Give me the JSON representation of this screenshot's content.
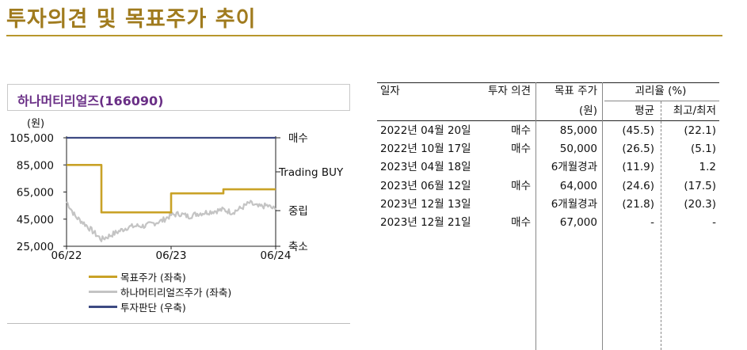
{
  "page_title": "투자의견 및 목표주가 추이",
  "chart_title": "하나머티리얼즈(166090)",
  "colors": {
    "title": "#a07b1e",
    "target": "#c9a227",
    "stock": "#c4c4c4",
    "opinion": "#3d4a82",
    "chart_title": "#6a2f86"
  },
  "chart_data": {
    "type": "line",
    "y_unit": "(원)",
    "ylim": [
      25000,
      105000
    ],
    "y_ticks": [
      "25,000",
      "45,000",
      "65,000",
      "85,000",
      "105,000"
    ],
    "y_tick_values": [
      25000,
      45000,
      65000,
      85000,
      105000
    ],
    "x_ticks": [
      "06/22",
      "06/23",
      "06/24"
    ],
    "x_tick_values": [
      "2022-06",
      "2023-06",
      "2024-06"
    ],
    "xlim": [
      "2022-06",
      "2024-06"
    ],
    "right_axis_labels": [
      "매수",
      "Trading BUY",
      "중립",
      "축소"
    ],
    "series": [
      {
        "name": "목표주가 (좌축)",
        "kind": "step",
        "points": [
          [
            "2022-06",
            85000
          ],
          [
            "2022-10",
            85000
          ],
          [
            "2022-10",
            50000
          ],
          [
            "2023-06",
            50000
          ],
          [
            "2023-06",
            64000
          ],
          [
            "2023-12",
            64000
          ],
          [
            "2023-12",
            67000
          ],
          [
            "2024-06",
            67000
          ]
        ]
      },
      {
        "name": "하나머티리얼즈주가 (좌축)",
        "kind": "line",
        "points": [
          [
            "2022-06",
            58000
          ],
          [
            "2022-07",
            47000
          ],
          [
            "2022-08",
            42000
          ],
          [
            "2022-09",
            36000
          ],
          [
            "2022-10",
            30000
          ],
          [
            "2022-11",
            33000
          ],
          [
            "2022-12",
            36000
          ],
          [
            "2023-01",
            39000
          ],
          [
            "2023-02",
            40000
          ],
          [
            "2023-03",
            40000
          ],
          [
            "2023-04",
            42000
          ],
          [
            "2023-05",
            44000
          ],
          [
            "2023-06",
            48000
          ],
          [
            "2023-07",
            49000
          ],
          [
            "2023-08",
            47000
          ],
          [
            "2023-09",
            49000
          ],
          [
            "2023-10",
            50000
          ],
          [
            "2023-11",
            51000
          ],
          [
            "2023-12",
            52000
          ],
          [
            "2024-01",
            50000
          ],
          [
            "2024-02",
            53000
          ],
          [
            "2024-03",
            57000
          ],
          [
            "2024-04",
            54000
          ],
          [
            "2024-05",
            55000
          ],
          [
            "2024-06",
            52000
          ]
        ]
      },
      {
        "name": "투자판단 (우축)",
        "kind": "line",
        "points": [
          [
            "2022-06",
            105000
          ],
          [
            "2024-06",
            105000
          ]
        ]
      }
    ]
  },
  "legend": [
    "목표주가 (좌축)",
    "하나머티리얼즈주가 (좌축)",
    "투자판단 (우축)"
  ],
  "table": {
    "headers": {
      "date": "일자",
      "opinion": "투자 의견",
      "target": "목표 주가",
      "target_unit": "(원)",
      "gap": "괴리율 (%)",
      "avg": "평균",
      "hilo": "최고/최저"
    },
    "rows": [
      {
        "date": "2022년 04월 20일",
        "opinion": "매수",
        "target": "85,000",
        "avg": "(45.5)",
        "hilo": "(22.1)"
      },
      {
        "date": "2022년 10월 17일",
        "opinion": "매수",
        "target": "50,000",
        "avg": "(26.5)",
        "hilo": "(5.1)"
      },
      {
        "date": "2023년 04월 18일",
        "opinion": "",
        "target": "6개월경과",
        "avg": "(11.9)",
        "hilo": "1.2"
      },
      {
        "date": "2023년 06월 12일",
        "opinion": "매수",
        "target": "64,000",
        "avg": "(24.6)",
        "hilo": "(17.5)"
      },
      {
        "date": "2023년 12월 13일",
        "opinion": "",
        "target": "6개월경과",
        "avg": "(21.8)",
        "hilo": "(20.3)"
      },
      {
        "date": "2023년 12월 21일",
        "opinion": "매수",
        "target": "67,000",
        "avg": "-",
        "hilo": "-"
      }
    ]
  }
}
